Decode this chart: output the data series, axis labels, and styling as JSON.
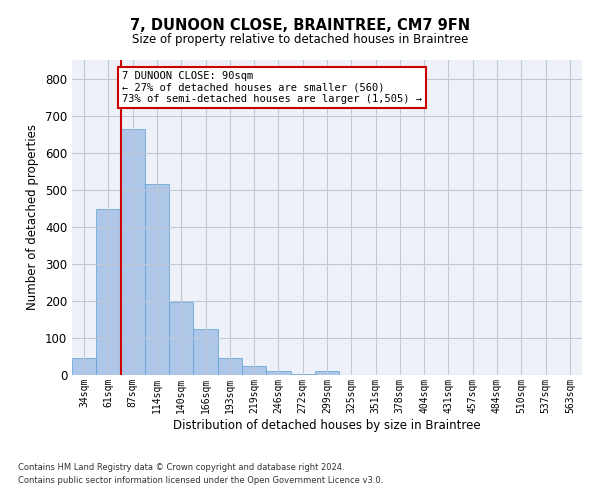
{
  "title": "7, DUNOON CLOSE, BRAINTREE, CM7 9FN",
  "subtitle": "Size of property relative to detached houses in Braintree",
  "xlabel": "Distribution of detached houses by size in Braintree",
  "ylabel": "Number of detached properties",
  "footnote1": "Contains HM Land Registry data © Crown copyright and database right 2024.",
  "footnote2": "Contains public sector information licensed under the Open Government Licence v3.0.",
  "bar_labels": [
    "34sqm",
    "61sqm",
    "87sqm",
    "114sqm",
    "140sqm",
    "166sqm",
    "193sqm",
    "219sqm",
    "246sqm",
    "272sqm",
    "299sqm",
    "325sqm",
    "351sqm",
    "378sqm",
    "404sqm",
    "431sqm",
    "457sqm",
    "484sqm",
    "510sqm",
    "537sqm",
    "563sqm"
  ],
  "bar_values": [
    47,
    447,
    665,
    515,
    196,
    125,
    47,
    23,
    10,
    2,
    10,
    0,
    0,
    0,
    0,
    0,
    0,
    0,
    0,
    0,
    0
  ],
  "bar_color": "#aec6e8",
  "bar_edge_color": "#5a9fd4",
  "annotation_line1": "7 DUNOON CLOSE: 90sqm",
  "annotation_line2": "← 27% of detached houses are smaller (560)",
  "annotation_line3": "73% of semi-detached houses are larger (1,505) →",
  "vline_color": "#cc0000",
  "grid_color": "#c0c8d8",
  "bg_color": "#eef2f8",
  "ylim": [
    0,
    850
  ],
  "yticks": [
    0,
    100,
    200,
    300,
    400,
    500,
    600,
    700,
    800
  ]
}
